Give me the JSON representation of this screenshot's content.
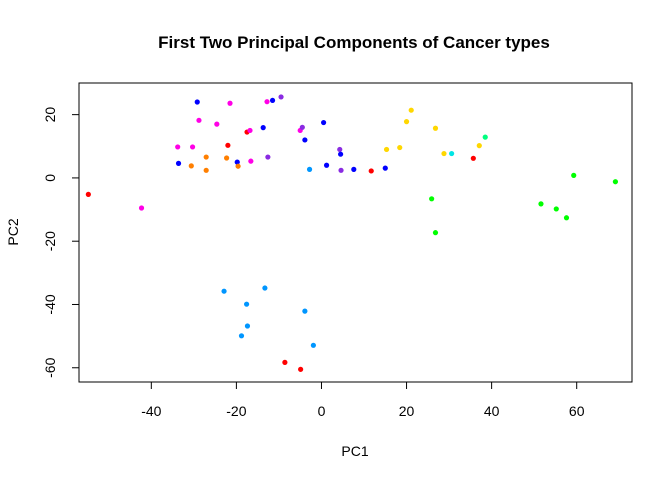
{
  "chart_data": {
    "type": "scatter",
    "title": "First Two Principal Components of Cancer types",
    "xlabel": "PC1",
    "ylabel": "PC2",
    "xlim": [
      -57,
      73
    ],
    "ylim": [
      -64.5,
      30
    ],
    "xticks": [
      -40,
      -20,
      0,
      20,
      40,
      60
    ],
    "yticks": [
      -60,
      -40,
      -20,
      0,
      20
    ],
    "grid": false,
    "legend": "none",
    "points": [
      {
        "x": -54.8,
        "y": -5.2,
        "color": "#ff0000"
      },
      {
        "x": -42.3,
        "y": -9.5,
        "color": "#ff00e6"
      },
      {
        "x": -33.8,
        "y": 9.8,
        "color": "#ff00e6"
      },
      {
        "x": -33.6,
        "y": 4.6,
        "color": "#0000ff"
      },
      {
        "x": -30.6,
        "y": 3.8,
        "color": "#ff7f00"
      },
      {
        "x": -30.3,
        "y": 9.8,
        "color": "#ff00e6"
      },
      {
        "x": -29.2,
        "y": 24.0,
        "color": "#0000ff"
      },
      {
        "x": -28.8,
        "y": 18.2,
        "color": "#ff00e6"
      },
      {
        "x": -27.1,
        "y": 6.6,
        "color": "#ff7f00"
      },
      {
        "x": -27.1,
        "y": 2.4,
        "color": "#ff7f00"
      },
      {
        "x": -24.6,
        "y": 17.0,
        "color": "#ff00e6"
      },
      {
        "x": -22.3,
        "y": 6.3,
        "color": "#ff7f00"
      },
      {
        "x": -22.0,
        "y": 10.3,
        "color": "#ff0000"
      },
      {
        "x": -21.5,
        "y": 23.6,
        "color": "#ff00e6"
      },
      {
        "x": -19.8,
        "y": 5.0,
        "color": "#0000ff"
      },
      {
        "x": -19.6,
        "y": 3.7,
        "color": "#ff7f00"
      },
      {
        "x": -17.5,
        "y": 14.5,
        "color": "#ff0000"
      },
      {
        "x": -16.8,
        "y": 15.0,
        "color": "#ff00e6"
      },
      {
        "x": -16.6,
        "y": 5.3,
        "color": "#ff00e6"
      },
      {
        "x": -13.7,
        "y": 15.9,
        "color": "#0000ff"
      },
      {
        "x": -12.8,
        "y": 24.1,
        "color": "#ff00e6"
      },
      {
        "x": -12.6,
        "y": 6.6,
        "color": "#8a2be2"
      },
      {
        "x": -11.5,
        "y": 24.5,
        "color": "#0000ff"
      },
      {
        "x": -9.5,
        "y": 25.6,
        "color": "#8a2be2"
      },
      {
        "x": -5.0,
        "y": 15.0,
        "color": "#ff00e6"
      },
      {
        "x": -4.5,
        "y": 16.0,
        "color": "#8a2be2"
      },
      {
        "x": -3.9,
        "y": 12.0,
        "color": "#0000ff"
      },
      {
        "x": -2.8,
        "y": 2.7,
        "color": "#0096ff"
      },
      {
        "x": 0.5,
        "y": 17.5,
        "color": "#0000ff"
      },
      {
        "x": 1.2,
        "y": 4.0,
        "color": "#0000ff"
      },
      {
        "x": 4.3,
        "y": 9.0,
        "color": "#8a2be2"
      },
      {
        "x": 4.5,
        "y": 7.5,
        "color": "#0000ff"
      },
      {
        "x": 4.6,
        "y": 2.4,
        "color": "#8a2be2"
      },
      {
        "x": 7.6,
        "y": 2.7,
        "color": "#0000ff"
      },
      {
        "x": 11.7,
        "y": 2.2,
        "color": "#ff0000"
      },
      {
        "x": 15.0,
        "y": 3.1,
        "color": "#0000ff"
      },
      {
        "x": 15.3,
        "y": 9.0,
        "color": "#ffd700"
      },
      {
        "x": 18.4,
        "y": 9.6,
        "color": "#ffd700"
      },
      {
        "x": 20.0,
        "y": 17.8,
        "color": "#ffd700"
      },
      {
        "x": 21.1,
        "y": 21.4,
        "color": "#ffd700"
      },
      {
        "x": 26.8,
        "y": 15.7,
        "color": "#ffd700"
      },
      {
        "x": 28.8,
        "y": 7.7,
        "color": "#ffd700"
      },
      {
        "x": 30.6,
        "y": 7.7,
        "color": "#00e5e5"
      },
      {
        "x": 35.7,
        "y": 6.2,
        "color": "#ff0000"
      },
      {
        "x": 37.1,
        "y": 10.2,
        "color": "#ffd700"
      },
      {
        "x": 38.5,
        "y": 12.9,
        "color": "#00ff7f"
      },
      {
        "x": 25.9,
        "y": -6.6,
        "color": "#00ff00"
      },
      {
        "x": 26.8,
        "y": -17.3,
        "color": "#00ff00"
      },
      {
        "x": 51.6,
        "y": -8.2,
        "color": "#00ff00"
      },
      {
        "x": 55.2,
        "y": -9.8,
        "color": "#00ff00"
      },
      {
        "x": 57.6,
        "y": -12.6,
        "color": "#00ff00"
      },
      {
        "x": 59.3,
        "y": 0.8,
        "color": "#00ff00"
      },
      {
        "x": 69.1,
        "y": -1.2,
        "color": "#00ff00"
      },
      {
        "x": -22.9,
        "y": -35.8,
        "color": "#0096ff"
      },
      {
        "x": -13.3,
        "y": -34.8,
        "color": "#0096ff"
      },
      {
        "x": -17.6,
        "y": -39.9,
        "color": "#0096ff"
      },
      {
        "x": -3.9,
        "y": -42.1,
        "color": "#0096ff"
      },
      {
        "x": -17.4,
        "y": -46.8,
        "color": "#0096ff"
      },
      {
        "x": -18.8,
        "y": -49.9,
        "color": "#0096ff"
      },
      {
        "x": -1.9,
        "y": -52.9,
        "color": "#0096ff"
      },
      {
        "x": -8.6,
        "y": -58.3,
        "color": "#ff0000"
      },
      {
        "x": -4.9,
        "y": -60.5,
        "color": "#ff0000"
      }
    ]
  }
}
